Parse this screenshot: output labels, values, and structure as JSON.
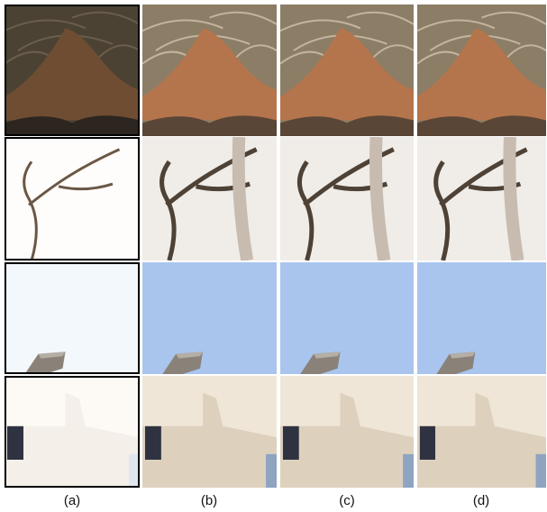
{
  "figure": {
    "columns": [
      {
        "label": "(a)"
      },
      {
        "label": "(b)"
      },
      {
        "label": "(c)"
      },
      {
        "label": "(d)"
      }
    ]
  }
}
